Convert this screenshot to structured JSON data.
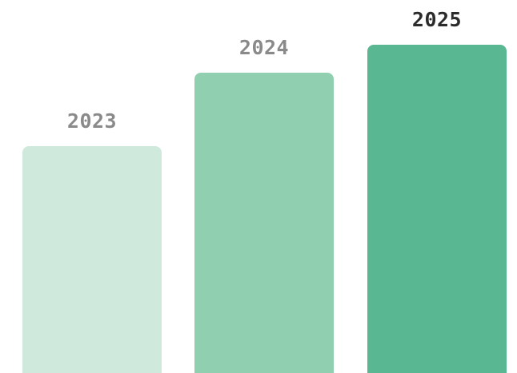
{
  "chart_data": {
    "type": "bar",
    "categories": [
      "2023",
      "2024",
      "2025"
    ],
    "values": [
      64,
      85,
      93
    ],
    "ylim": [
      0,
      100
    ],
    "grid": false,
    "legend": "none",
    "bar_colors": [
      "#d0e9dd",
      "#90d0b0",
      "#59b891"
    ],
    "label_colors": [
      "#8a8a8a",
      "#8a8a8a",
      "#2b2b2b"
    ]
  }
}
